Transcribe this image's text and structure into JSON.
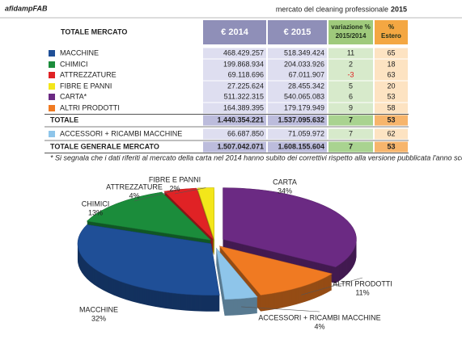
{
  "header": {
    "logo": "afidampFAB",
    "title": "mercato del cleaning professionale",
    "year": "2015"
  },
  "table": {
    "title": "TOTALE MERCATO",
    "columns": [
      [
        "€ 2014"
      ],
      [
        "€ 2015"
      ],
      [
        "variazione %",
        "2015/2014"
      ],
      [
        "%",
        "Estero"
      ]
    ],
    "rows": [
      [
        "MACCHINE",
        "468.429.257",
        "518.349.424",
        "11",
        "65"
      ],
      [
        "CHIMICI",
        "199.868.934",
        "204.033.926",
        "2",
        "18"
      ],
      [
        "ATTREZZATURE",
        "69.118.696",
        "67.011.907",
        "-3",
        "63"
      ],
      [
        "FIBRE E PANNI",
        "27.225.624",
        "28.455.342",
        "5",
        "20"
      ],
      [
        "CARTA*",
        "511.322.315",
        "540.065.083",
        "6",
        "53"
      ],
      [
        "ALTRI PRODOTTI",
        "164.389.395",
        "179.179.949",
        "9",
        "58"
      ],
      [
        "TOTALE",
        "1.440.354.221",
        "1.537.095.632",
        "7",
        "53"
      ],
      [
        "ACCESSORI + RICAMBI MACCHINE",
        "66.687.850",
        "71.059.972",
        "7",
        "62"
      ],
      [
        "TOTALE GENERALE MERCATO",
        "1.507.042.071",
        "1.608.155.604",
        "7",
        "53"
      ]
    ],
    "footnote": "* Si segnala che i dati riferiti al mercato della carta nel 2014 hanno subito dei correttivi rispetto alla versione pubblicata l'anno scorsa."
  },
  "chart_data": {
    "type": "pie",
    "categories": [
      "CARTA",
      "ALTRI PRODOTTI",
      "ACCESSORI + RICAMBI MACCHINE",
      "MACCHINE",
      "CHIMICI",
      "ATTREZZATURE",
      "FIBRE E PANNI"
    ],
    "values": [
      34,
      11,
      4,
      32,
      13,
      4,
      2
    ],
    "value_labels": [
      "34%",
      "11%",
      "4%",
      "32%",
      "13%",
      "4%",
      "2%"
    ],
    "colors": [
      "#6b2a83",
      "#f07a22",
      "#8ec5ea",
      "#1f4f97",
      "#1b8c3b",
      "#e02225",
      "#f3e61a"
    ]
  }
}
